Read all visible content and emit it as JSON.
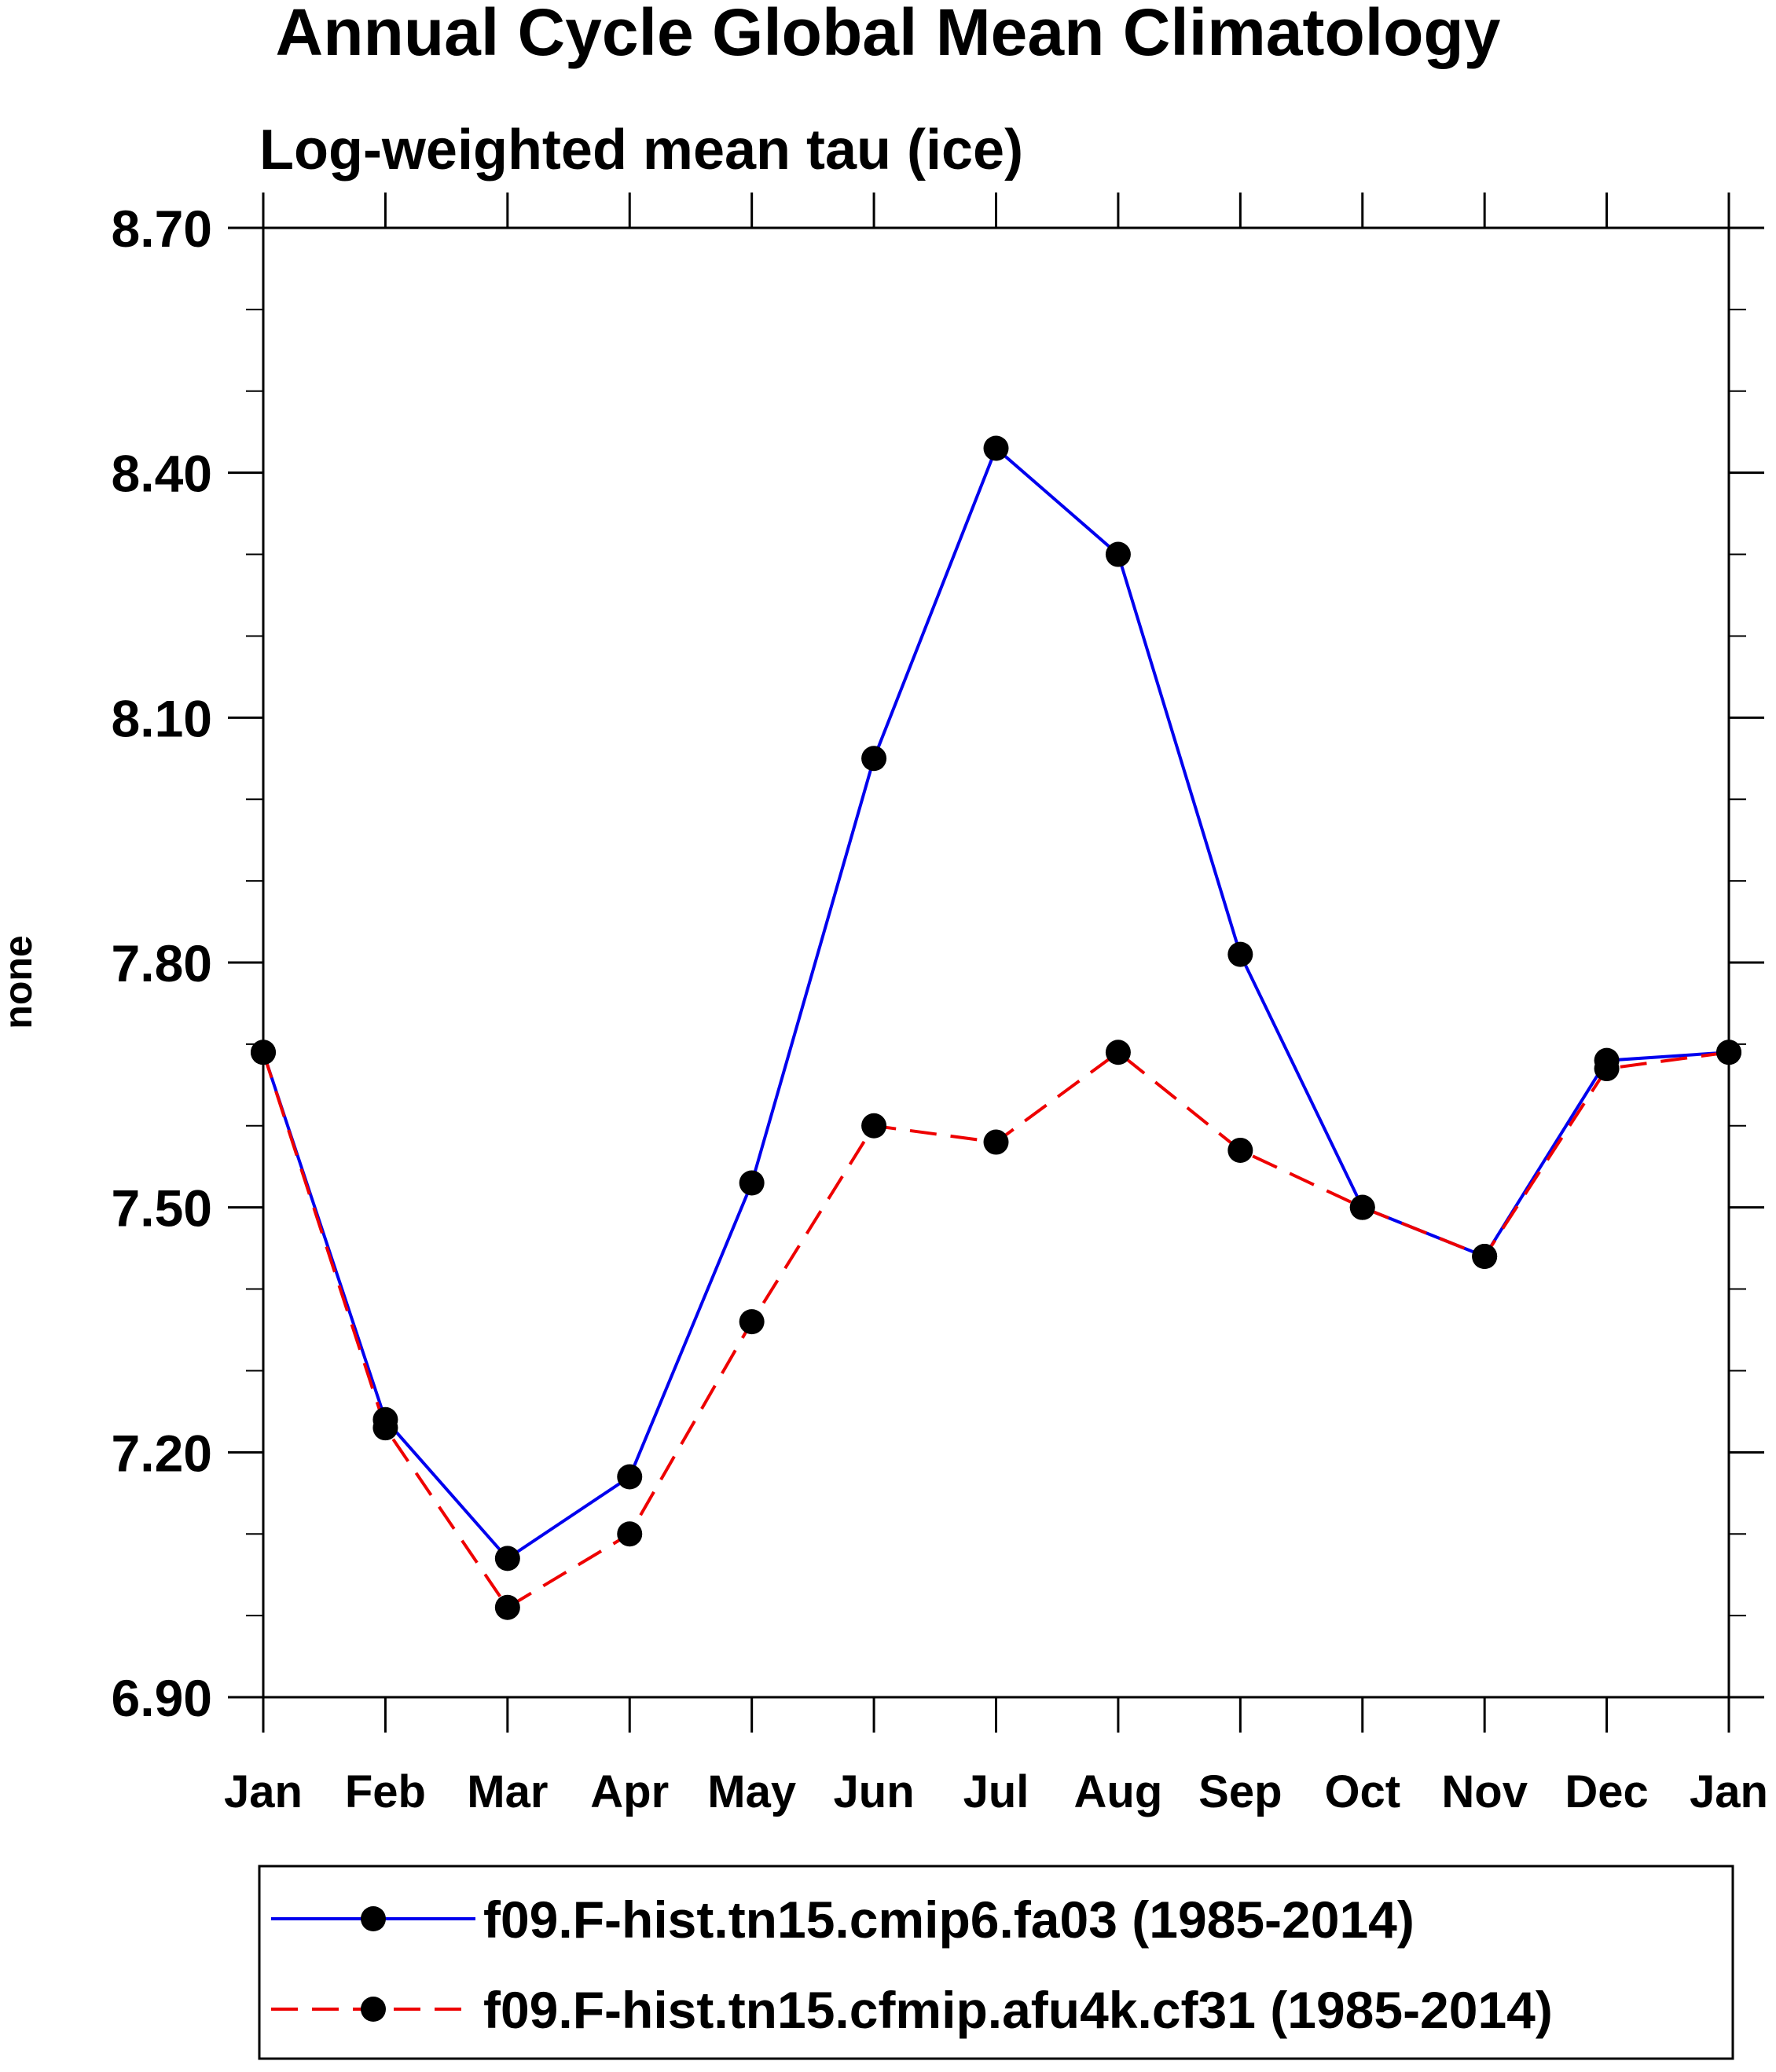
{
  "chart_data": {
    "type": "line",
    "title": "Annual Cycle Global Mean Climatology",
    "subtitle": "Log-weighted mean tau (ice)",
    "xlabel": "",
    "ylabel": "none",
    "categories": [
      "Jan",
      "Feb",
      "Mar",
      "Apr",
      "May",
      "Jun",
      "Jul",
      "Aug",
      "Sep",
      "Oct",
      "Nov",
      "Dec",
      "Jan"
    ],
    "ylim": [
      6.9,
      8.7
    ],
    "yticks": [
      "6.90",
      "7.20",
      "7.50",
      "7.80",
      "8.10",
      "8.40",
      "8.70"
    ],
    "grid": false,
    "legend_position": "bottom",
    "series": [
      {
        "name": "f09.F-hist.tn15.cmip6.fa03 (1985-2014)",
        "color": "#0000ee",
        "line_style": "solid",
        "marker": "filled-circle",
        "values": [
          7.69,
          7.24,
          7.07,
          7.17,
          7.53,
          8.05,
          8.43,
          8.3,
          7.81,
          7.5,
          7.44,
          7.68,
          7.69
        ]
      },
      {
        "name": "f09.F-hist.tn15.cfmip.afu4k.cf31 (1985-2014)",
        "color": "#ee0000",
        "line_style": "dashed",
        "marker": "filled-circle",
        "values": [
          7.69,
          7.23,
          7.01,
          7.1,
          7.36,
          7.6,
          7.58,
          7.69,
          7.57,
          7.5,
          7.44,
          7.67,
          7.69
        ]
      }
    ]
  }
}
